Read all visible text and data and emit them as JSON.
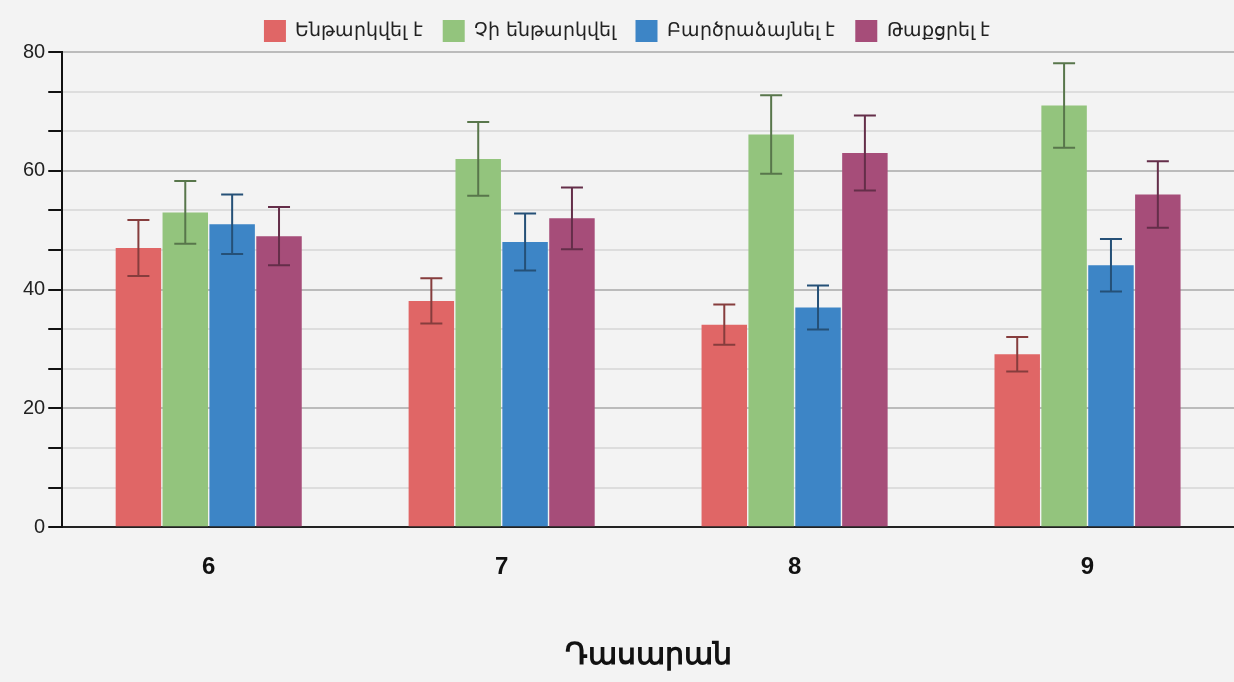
{
  "chart_data": {
    "type": "bar",
    "xlabel": "Դասարան",
    "categories": [
      "6",
      "7",
      "8",
      "9"
    ],
    "series": [
      {
        "name": "Ենթարկվել է",
        "color": "#e06666",
        "values": [
          47,
          38.1,
          34.1,
          29.1
        ],
        "errors": [
          4.7,
          3.8,
          3.4,
          2.9
        ]
      },
      {
        "name": "Չի ենթարկվել",
        "color": "#93c47d",
        "values": [
          53,
          62,
          66.1,
          71
        ],
        "errors": [
          5.3,
          6.2,
          6.6,
          7.1
        ]
      },
      {
        "name": "Բարծրաձայնել է",
        "color": "#3d85c6",
        "values": [
          51,
          48,
          37,
          44.1
        ],
        "errors": [
          5,
          4.8,
          3.7,
          4.4
        ]
      },
      {
        "name": "Թաքցրել է",
        "color": "#a64d79",
        "values": [
          49,
          52,
          63,
          56
        ],
        "errors": [
          4.9,
          5.2,
          6.3,
          5.6
        ]
      }
    ],
    "ylim": [
      0,
      80
    ],
    "yticks": [
      0,
      {
        "value": 6.67,
        "label": null
      },
      {
        "value": 13.33,
        "label": null
      },
      20,
      {
        "value": 26.67,
        "label": null
      },
      {
        "value": 33.33,
        "label": null
      },
      40,
      {
        "value": 46.67,
        "label": null
      },
      {
        "value": 53.33,
        "label": null
      },
      60,
      {
        "value": 66.67,
        "label": null
      },
      {
        "value": 73.33,
        "label": null
      },
      80
    ],
    "grid": "y",
    "legend": "top"
  }
}
